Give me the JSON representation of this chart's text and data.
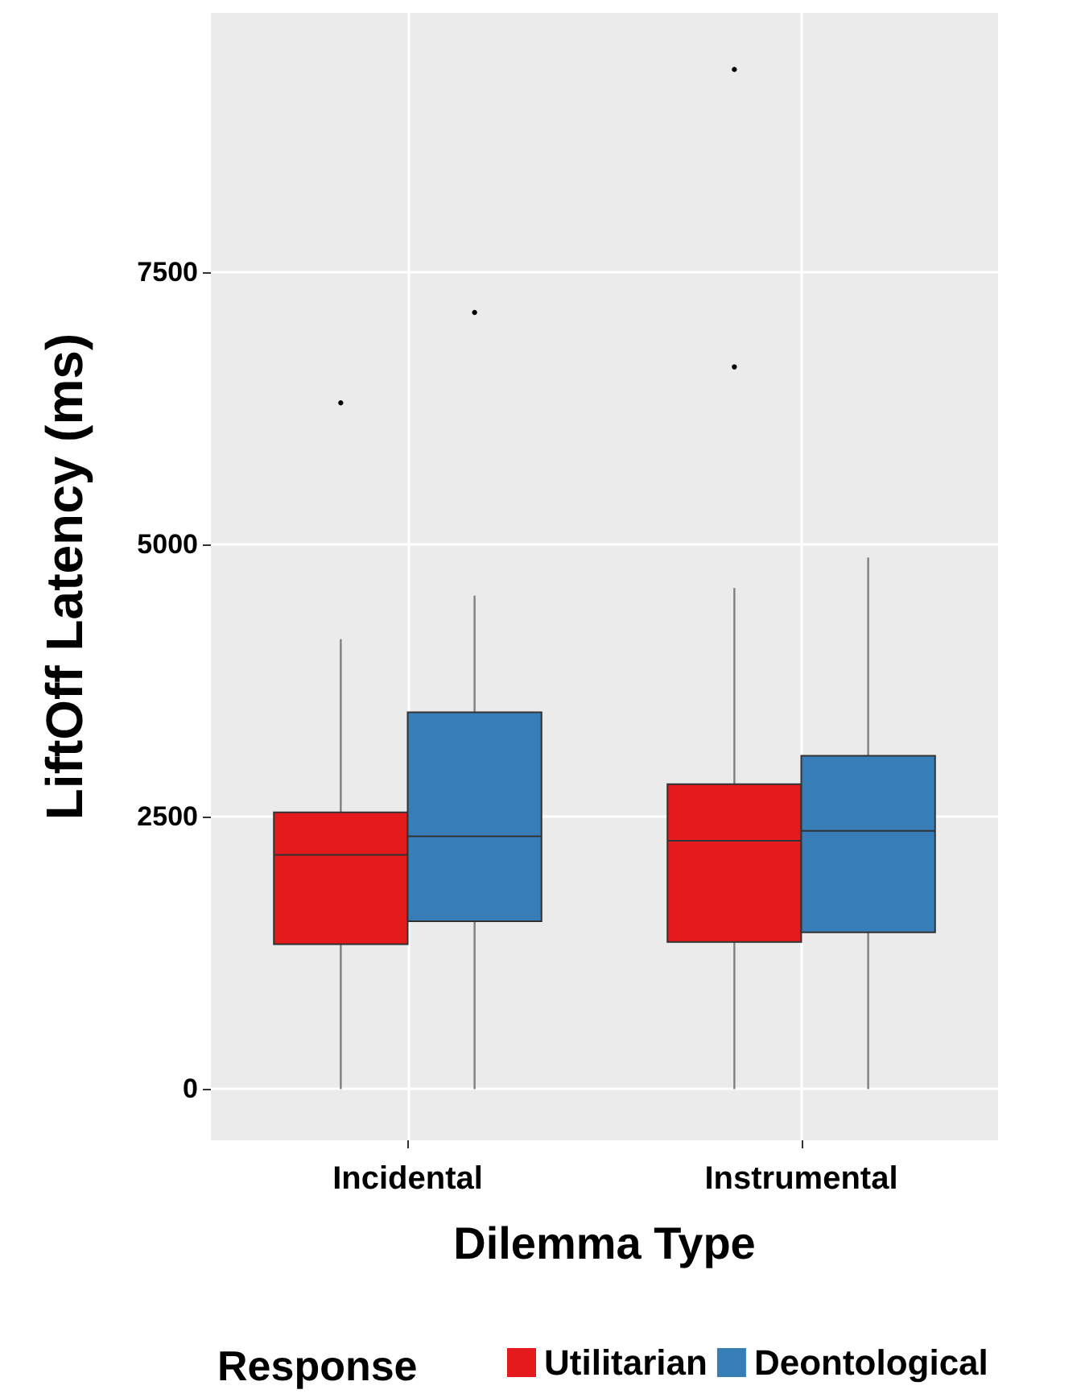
{
  "chart_data": {
    "type": "box",
    "xlabel": "Dilemma Type",
    "ylabel": "LiftOff Latency (ms)",
    "legend_title": "Response",
    "categories": [
      "Incidental",
      "Instrumental"
    ],
    "series": [
      {
        "name": "Utilitarian",
        "color": "#e41a1c",
        "boxes": [
          {
            "low": 0,
            "q1": 1330,
            "median": 2150,
            "q3": 2540,
            "high": 4130,
            "outliers": [
              6300
            ]
          },
          {
            "low": 0,
            "q1": 1350,
            "median": 2280,
            "q3": 2800,
            "high": 4600,
            "outliers": [
              6630,
              9360
            ]
          }
        ]
      },
      {
        "name": "Deontological",
        "color": "#377eb8",
        "boxes": [
          {
            "low": 0,
            "q1": 1540,
            "median": 2320,
            "q3": 3460,
            "high": 4530,
            "outliers": [
              7130
            ]
          },
          {
            "low": 0,
            "q1": 1440,
            "median": 2370,
            "q3": 3060,
            "high": 4880
          }
        ]
      }
    ],
    "ylim": [
      -470,
      9880
    ],
    "yticks": [
      0,
      2500,
      5000,
      7500
    ],
    "grid": true,
    "legend": "bottom"
  }
}
